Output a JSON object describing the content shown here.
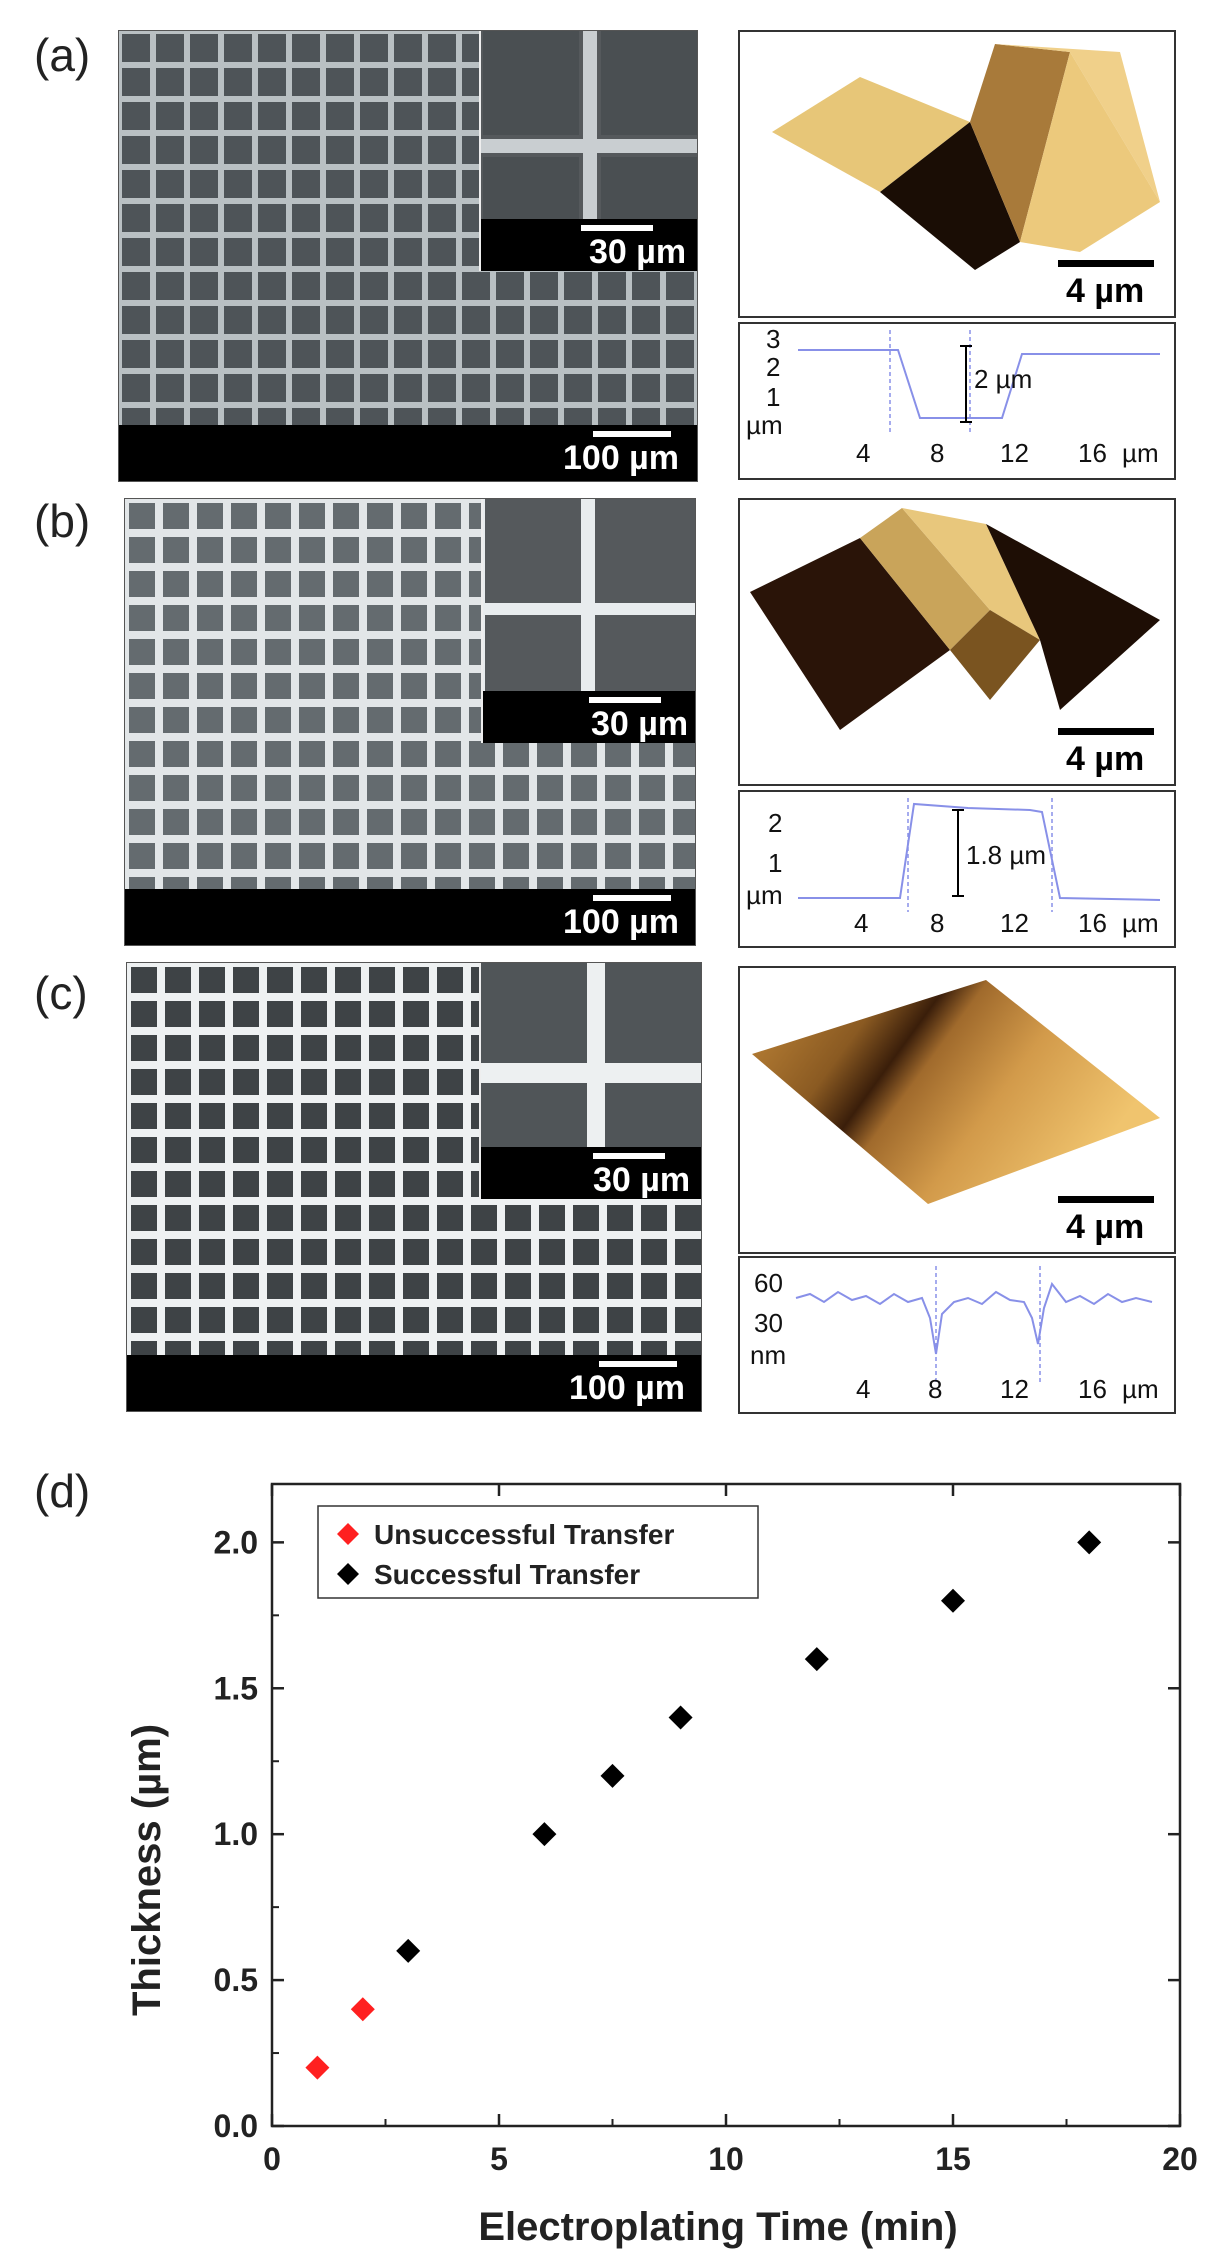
{
  "panels": {
    "a": {
      "label": "(a)",
      "sem_scale": "100 µm",
      "inset_scale": "30 µm",
      "afm_scale": "4 µm",
      "profile_y_ticks": [
        "3",
        "2",
        "1"
      ],
      "profile_y_unit": "µm",
      "profile_x_ticks": [
        "4",
        "8",
        "12",
        "16"
      ],
      "profile_x_unit": "µm",
      "step_label": "2 µm"
    },
    "b": {
      "label": "(b)",
      "sem_scale": "100 µm",
      "inset_scale": "30 µm",
      "afm_scale": "4 µm",
      "profile_y_ticks": [
        "2",
        "1"
      ],
      "profile_y_unit": "µm",
      "profile_x_ticks": [
        "4",
        "8",
        "12",
        "16"
      ],
      "profile_x_unit": "µm",
      "step_label": "1.8 µm"
    },
    "c": {
      "label": "(c)",
      "sem_scale": "100 µm",
      "inset_scale": "30 µm",
      "afm_scale": "4 µm",
      "profile_y_ticks": [
        "60",
        "30"
      ],
      "profile_y_unit": "nm",
      "profile_x_ticks": [
        "4",
        "8",
        "12",
        "16"
      ],
      "profile_x_unit": "µm"
    },
    "d": {
      "label": "(d)"
    }
  },
  "colors": {
    "unsuccessful": "#ff2020",
    "successful": "#000000",
    "profile_line": "#8890e8"
  },
  "chart_data": {
    "type": "scatter",
    "xlabel": "Electroplating Time (min)",
    "ylabel": "Thickness (µm)",
    "xlim": [
      0,
      20
    ],
    "ylim": [
      0,
      2.2
    ],
    "x_ticks": [
      "0",
      "5",
      "10",
      "15",
      "20"
    ],
    "y_ticks": [
      "0.0",
      "0.5",
      "1.0",
      "1.5",
      "2.0"
    ],
    "legend_position": "top-left",
    "series": [
      {
        "name": "Unsuccessful Transfer",
        "color": "#ff2020",
        "marker": "diamond",
        "points": [
          [
            1,
            0.2
          ],
          [
            2,
            0.4
          ]
        ]
      },
      {
        "name": "Successful Transfer",
        "color": "#000000",
        "marker": "diamond",
        "points": [
          [
            3,
            0.6
          ],
          [
            6,
            1.0
          ],
          [
            7.5,
            1.2
          ],
          [
            9,
            1.4
          ],
          [
            12,
            1.6
          ],
          [
            15,
            1.8
          ],
          [
            18,
            2.0
          ]
        ]
      }
    ]
  }
}
